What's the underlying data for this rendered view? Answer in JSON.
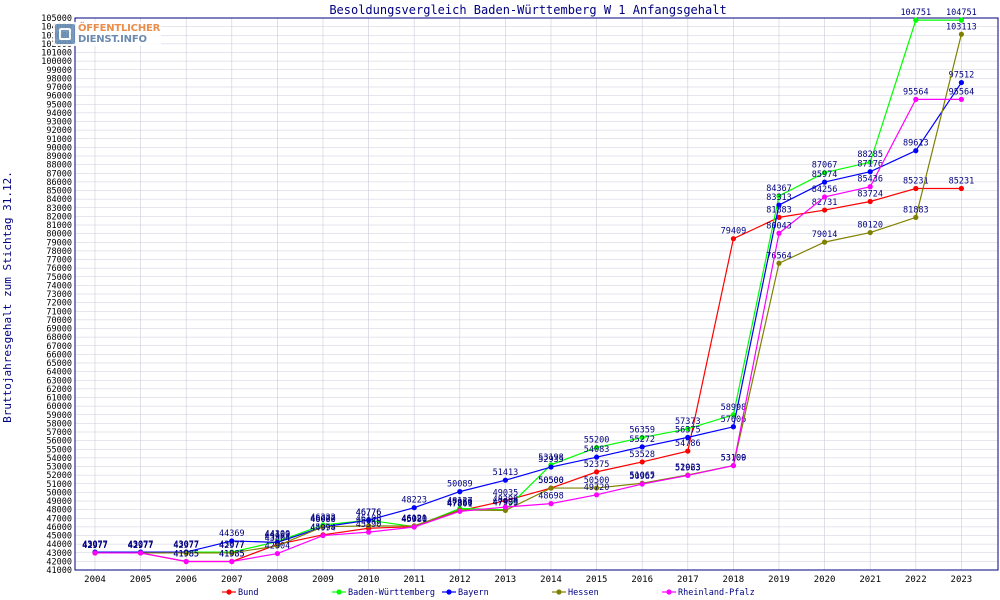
{
  "logo": {
    "line1": "ÖFFENTLICHER",
    "line2": "DIENST.INFO"
  },
  "chart_data": {
    "type": "line",
    "title": "Besoldungsvergleich Baden-Württemberg W 1 Anfangsgehalt",
    "ylabel": "Bruttojahresgehalt zum Stichtag 31.12.",
    "xlabel": "",
    "ylim": [
      41000,
      105000
    ],
    "ytick_step": 1000,
    "grid": true,
    "legend": "bottom",
    "categories": [
      "2004",
      "2005",
      "2006",
      "2007",
      "2008",
      "2009",
      "2010",
      "2011",
      "2012",
      "2013",
      "2014",
      "2015",
      "2016",
      "2017",
      "2018",
      "2019",
      "2020",
      "2021",
      "2022",
      "2023"
    ],
    "series": [
      {
        "name": "Bund",
        "color": "#ff0000",
        "values": [
          42977,
          42977,
          41985,
          41985,
          43964,
          45079,
          45840,
          46020,
          47860,
          49035,
          50500,
          52375,
          53528,
          54786,
          79409,
          81883,
          82731,
          83724,
          85231,
          85231
        ]
      },
      {
        "name": "Baden-Württemberg",
        "color": "#00ff00",
        "values": [
          43077,
          43077,
          43077,
          43077,
          44300,
          46222,
          46776,
          46020,
          48127,
          47995,
          53198,
          55200,
          56359,
          57373,
          58998,
          84367,
          87067,
          88285,
          104751,
          104751
        ]
      },
      {
        "name": "Bayern",
        "color": "#0000ff",
        "values": [
          43077,
          43077,
          43077,
          44369,
          44199,
          46000,
          46776,
          48223,
          50089,
          51413,
          52935,
          54083,
          55272,
          56375,
          57606,
          83313,
          85974,
          87176,
          89613,
          97512
        ]
      },
      {
        "name": "Hessen",
        "color": "#808000",
        "values": [
          42977,
          42977,
          42977,
          42977,
          43804,
          46022,
          46108,
          46121,
          47959,
          47909,
          50500,
          50500,
          51065,
          52023,
          53109,
          76564,
          79014,
          80120,
          81883,
          103113
        ]
      },
      {
        "name": "Rheinland-Pfalz",
        "color": "#ff00ff",
        "values": [
          42977,
          42977,
          41985,
          41985,
          42904,
          44994,
          45390,
          45986,
          47801,
          48298,
          48698,
          49720,
          50967,
          51963,
          53100,
          80043,
          84256,
          85436,
          95564,
          95564
        ]
      }
    ]
  }
}
